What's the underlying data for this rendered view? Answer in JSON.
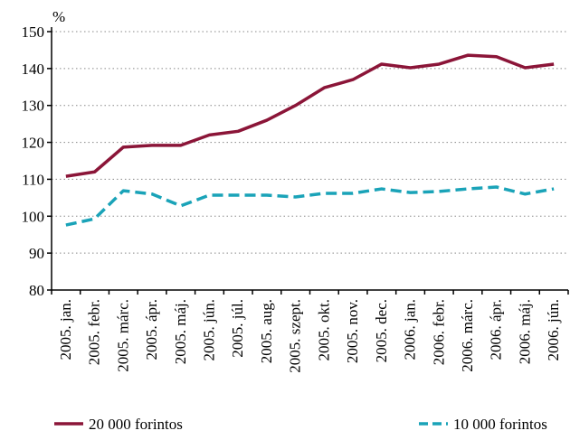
{
  "chart_data": {
    "type": "line",
    "y_label": "%",
    "categories": [
      "2005. jan.",
      "2005. febr.",
      "2005. márc.",
      "2005. ápr.",
      "2005. máj.",
      "2005. jún.",
      "2005. júl.",
      "2005. aug.",
      "2005. szept.",
      "2005. okt.",
      "2005. nov.",
      "2005. dec.",
      "2006. jan.",
      "2006. febr.",
      "2006. márc.",
      "2006. ápr.",
      "2006. máj.",
      "2006. jún."
    ],
    "series": [
      {
        "name": "20 000 forintos",
        "color": "#8b1538",
        "dash": false,
        "values": [
          110.8,
          112,
          118.7,
          119.2,
          119.2,
          122,
          123,
          126,
          130,
          134.8,
          137,
          141.2,
          140.2,
          141.2,
          143.6,
          143.2,
          140.2,
          141.2
        ]
      },
      {
        "name": "10 000 forintos",
        "color": "#1aa3b8",
        "dash": true,
        "values": [
          97.6,
          99.3,
          106.9,
          106,
          102.8,
          105.7,
          105.7,
          105.7,
          105.2,
          106.2,
          106.2,
          107.4,
          106.4,
          106.7,
          107.4,
          107.9,
          106,
          107.4
        ]
      }
    ],
    "ylim": [
      80,
      150
    ],
    "yticks": [
      80,
      90,
      100,
      110,
      120,
      130,
      140,
      150
    ],
    "grid": true
  }
}
